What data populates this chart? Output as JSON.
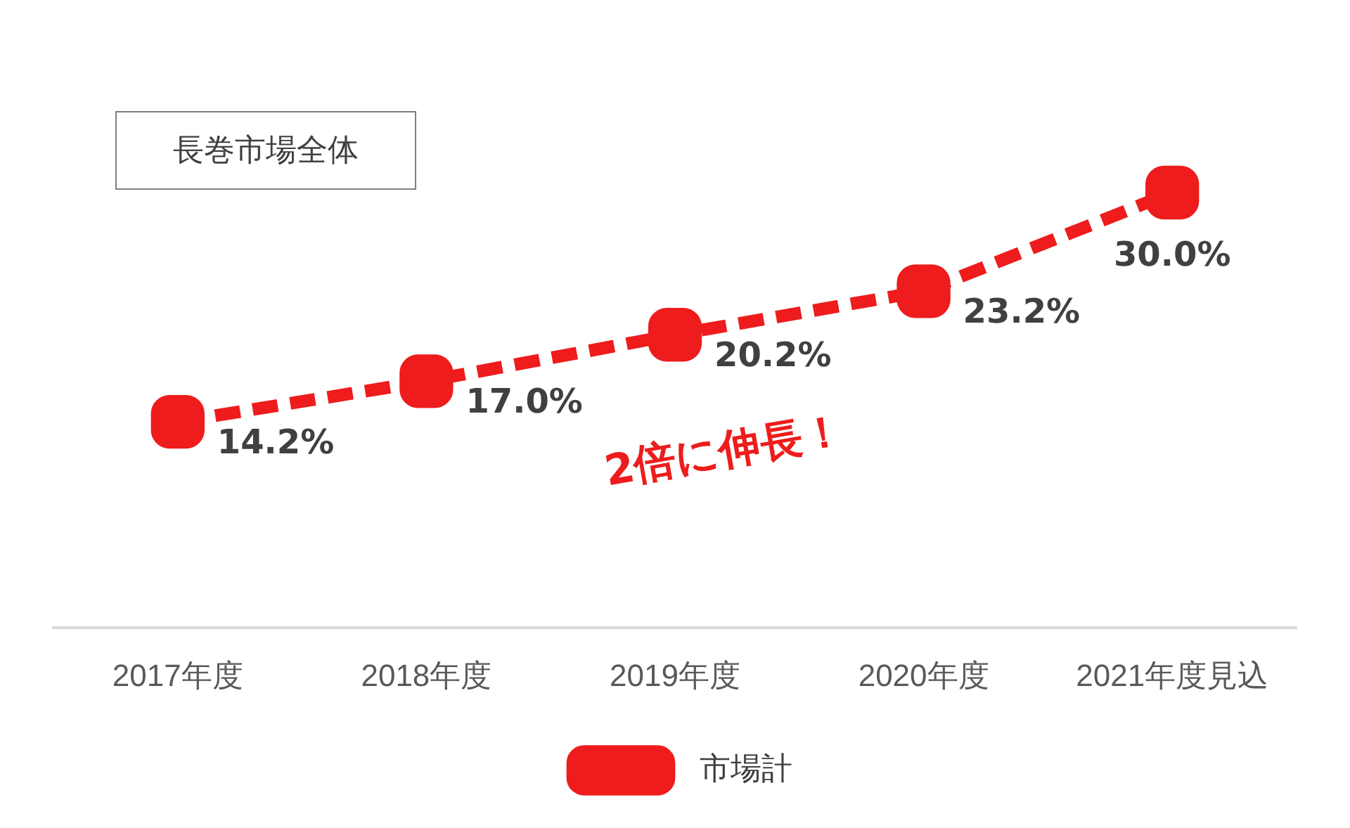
{
  "chart_data": {
    "type": "line",
    "title": "長巻市場全体",
    "categories": [
      "2017年度",
      "2018年度",
      "2019年度",
      "2020年度",
      "2021年度見込"
    ],
    "series": [
      {
        "name": "市場計",
        "color": "#ee1c1c",
        "values": [
          14.2,
          17.0,
          20.2,
          23.2,
          30.0
        ],
        "value_labels": [
          "14.2%",
          "17.0%",
          "20.2%",
          "23.2%",
          "30.0%"
        ]
      }
    ],
    "marker": "square",
    "line_style": "dashed",
    "legend": "bottom",
    "grid": false,
    "annotations": [
      "2倍に伸長！"
    ]
  }
}
